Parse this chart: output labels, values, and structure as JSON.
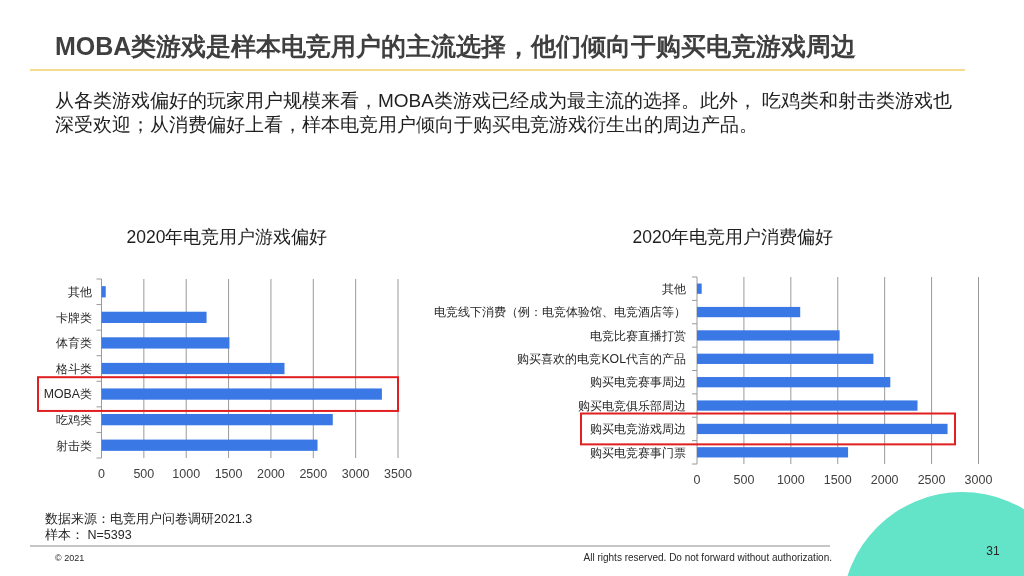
{
  "chart_data": [
    {
      "type": "other",
      "title": "MOBA类游戏是样本电竞用户的主流选择，他们倾向于购买电竞游戏周边",
      "subtitle": "从各类游戏偏好的玩家用户规模来看，MOBA类游戏已经成为最主流的选择。此外， 吃鸡类和射击类游戏也深受欢迎；从消费偏好上看，样本电竞用户倾向于购买电竞游戏衍生出的周边产品。",
      "annotations": [
        "© 2021",
        "All rights reserved. Do not forward without authorization.",
        "31"
      ]
    },
    {
      "type": "bar",
      "orientation": "horizontal",
      "title": "2020年电竞用户游戏偏好",
      "categories": [
        "其他",
        "卡牌类",
        "体育类",
        "格斗类",
        "MOBA类",
        "吃鸡类",
        "射击类"
      ],
      "values": [
        50,
        1240,
        1510,
        2160,
        3310,
        2730,
        2550
      ],
      "color": "#3a78e6",
      "xlim": [
        0,
        3500
      ],
      "xticks": [
        0,
        500,
        1000,
        1500,
        2000,
        2500,
        3000,
        3500
      ],
      "grid": "x",
      "annotations": [
        "数据来源：电竞用户问卷调研2021.3",
        "样本： N=5393"
      ]
    },
    {
      "type": "bar",
      "orientation": "horizontal",
      "title": "2020年电竞用户消费偏好",
      "categories": [
        "其他",
        "电竞线下消费（例：电竞体验馆、电竞酒店等）",
        "电竞比赛直播打赏",
        "购买喜欢的电竞KOL代言的产品",
        "购买电竞赛事周边",
        "购买电竞俱乐部周边",
        "购买电竞游戏周边",
        "购买电竞赛事门票"
      ],
      "values": [
        50,
        1100,
        1520,
        1880,
        2060,
        2350,
        2670,
        1610
      ],
      "color": "#3a78e6",
      "xlim": [
        0,
        3000
      ],
      "xticks": [
        0,
        500,
        1000,
        1500,
        2000,
        2500,
        3000
      ],
      "grid": "x"
    }
  ]
}
